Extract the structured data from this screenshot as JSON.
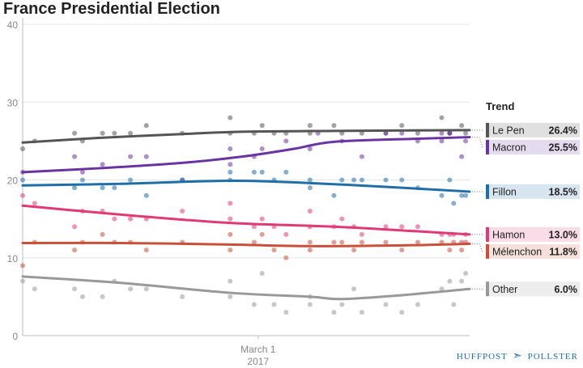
{
  "chart_data": {
    "type": "scatter",
    "title": "France Presidential Election",
    "legend_title": "Trend",
    "x_tick_labels": [
      {
        "date": "2017-03-01",
        "line1": "March 1",
        "line2": "2017"
      }
    ],
    "x_range": [
      "2017-01-01",
      "2017-04-23"
    ],
    "ylim": [
      0,
      40
    ],
    "y_ticks": [
      0,
      10,
      20,
      30,
      40
    ],
    "grid": "horizontal",
    "legend_position": "right",
    "series": [
      {
        "name": "Le Pen",
        "label": "26.4%",
        "color": "#555555",
        "trend": [
          [
            "2017-01-01",
            24.8
          ],
          [
            "2017-01-20",
            25.4
          ],
          [
            "2017-02-10",
            25.9
          ],
          [
            "2017-02-25",
            26.2
          ],
          [
            "2017-03-20",
            26.3
          ],
          [
            "2017-04-23",
            26.4
          ]
        ],
        "polls": [
          [
            "2017-01-01",
            24
          ],
          [
            "2017-01-04",
            25
          ],
          [
            "2017-01-14",
            26
          ],
          [
            "2017-01-16",
            25
          ],
          [
            "2017-01-21",
            26
          ],
          [
            "2017-01-24",
            26
          ],
          [
            "2017-01-28",
            26
          ],
          [
            "2017-02-01",
            27
          ],
          [
            "2017-02-10",
            26
          ],
          [
            "2017-02-22",
            28
          ],
          [
            "2017-02-22",
            26
          ],
          [
            "2017-02-28",
            26
          ],
          [
            "2017-03-02",
            27
          ],
          [
            "2017-03-05",
            26
          ],
          [
            "2017-03-08",
            26
          ],
          [
            "2017-03-14",
            27
          ],
          [
            "2017-03-14",
            26
          ],
          [
            "2017-03-20",
            27
          ],
          [
            "2017-03-22",
            26
          ],
          [
            "2017-03-27",
            26
          ],
          [
            "2017-04-02",
            26
          ],
          [
            "2017-04-06",
            27
          ],
          [
            "2017-04-10",
            26
          ],
          [
            "2017-04-16",
            28
          ],
          [
            "2017-04-18",
            26
          ],
          [
            "2017-04-18",
            26
          ],
          [
            "2017-04-21",
            27
          ],
          [
            "2017-04-22",
            26
          ]
        ]
      },
      {
        "name": "Macron",
        "label": "25.5%",
        "color": "#6a35a0",
        "trend": [
          [
            "2017-01-01",
            21.0
          ],
          [
            "2017-01-20",
            21.5
          ],
          [
            "2017-02-10",
            22.2
          ],
          [
            "2017-02-25",
            23.0
          ],
          [
            "2017-03-10",
            24.0
          ],
          [
            "2017-03-20",
            24.9
          ],
          [
            "2017-04-10",
            25.3
          ],
          [
            "2017-04-23",
            25.5
          ]
        ],
        "polls": [
          [
            "2017-01-01",
            21
          ],
          [
            "2017-01-14",
            23
          ],
          [
            "2017-01-16",
            21
          ],
          [
            "2017-01-21",
            22
          ],
          [
            "2017-01-28",
            23
          ],
          [
            "2017-02-01",
            23
          ],
          [
            "2017-02-10",
            20
          ],
          [
            "2017-02-22",
            24
          ],
          [
            "2017-02-22",
            22
          ],
          [
            "2017-02-28",
            23
          ],
          [
            "2017-03-02",
            24
          ],
          [
            "2017-03-08",
            25
          ],
          [
            "2017-03-14",
            24
          ],
          [
            "2017-03-16",
            26
          ],
          [
            "2017-03-22",
            25
          ],
          [
            "2017-03-27",
            23
          ],
          [
            "2017-04-02",
            26
          ],
          [
            "2017-04-06",
            26
          ],
          [
            "2017-04-10",
            25
          ],
          [
            "2017-04-16",
            25
          ],
          [
            "2017-04-16",
            26
          ],
          [
            "2017-04-18",
            26
          ],
          [
            "2017-04-22",
            25
          ],
          [
            "2017-04-21",
            23
          ]
        ]
      },
      {
        "name": "Fillon",
        "label": "18.5%",
        "color": "#1f6ea8",
        "trend": [
          [
            "2017-01-01",
            19.3
          ],
          [
            "2017-01-25",
            19.5
          ],
          [
            "2017-02-22",
            19.9
          ],
          [
            "2017-03-14",
            19.6
          ],
          [
            "2017-04-06",
            19.0
          ],
          [
            "2017-04-23",
            18.5
          ]
        ],
        "polls": [
          [
            "2017-01-01",
            20
          ],
          [
            "2017-01-14",
            19
          ],
          [
            "2017-01-16",
            20
          ],
          [
            "2017-01-21",
            19
          ],
          [
            "2017-01-24",
            19
          ],
          [
            "2017-01-28",
            20
          ],
          [
            "2017-02-01",
            18
          ],
          [
            "2017-02-10",
            20
          ],
          [
            "2017-02-22",
            21
          ],
          [
            "2017-02-22",
            20
          ],
          [
            "2017-02-28",
            21
          ],
          [
            "2017-03-02",
            21
          ],
          [
            "2017-03-05",
            20
          ],
          [
            "2017-03-08",
            21
          ],
          [
            "2017-03-14",
            19
          ],
          [
            "2017-03-14",
            20
          ],
          [
            "2017-03-20",
            18
          ],
          [
            "2017-03-22",
            20
          ],
          [
            "2017-03-25",
            20
          ],
          [
            "2017-03-27",
            20
          ],
          [
            "2017-04-02",
            20
          ],
          [
            "2017-04-06",
            20
          ],
          [
            "2017-04-10",
            19
          ],
          [
            "2017-04-16",
            18
          ],
          [
            "2017-04-18",
            20
          ],
          [
            "2017-04-19",
            17
          ],
          [
            "2017-04-21",
            18
          ],
          [
            "2017-04-22",
            18
          ]
        ]
      },
      {
        "name": "Hamon",
        "label": "13.0%",
        "color": "#e03a76",
        "trend": [
          [
            "2017-01-01",
            16.7
          ],
          [
            "2017-01-20",
            15.8
          ],
          [
            "2017-02-10",
            14.9
          ],
          [
            "2017-02-25",
            14.4
          ],
          [
            "2017-03-20",
            14.0
          ],
          [
            "2017-04-10",
            13.4
          ],
          [
            "2017-04-23",
            13.0
          ]
        ],
        "polls": [
          [
            "2017-01-01",
            18
          ],
          [
            "2017-01-04",
            17
          ],
          [
            "2017-01-14",
            14
          ],
          [
            "2017-01-16",
            16
          ],
          [
            "2017-01-21",
            16
          ],
          [
            "2017-01-24",
            15
          ],
          [
            "2017-01-28",
            15
          ],
          [
            "2017-02-01",
            15
          ],
          [
            "2017-02-10",
            16
          ],
          [
            "2017-02-22",
            17
          ],
          [
            "2017-02-22",
            15
          ],
          [
            "2017-02-28",
            14
          ],
          [
            "2017-03-02",
            15
          ],
          [
            "2017-03-05",
            14
          ],
          [
            "2017-03-08",
            13
          ],
          [
            "2017-03-14",
            16
          ],
          [
            "2017-03-14",
            14
          ],
          [
            "2017-03-20",
            14
          ],
          [
            "2017-03-22",
            15
          ],
          [
            "2017-03-25",
            14
          ],
          [
            "2017-03-27",
            13
          ],
          [
            "2017-04-02",
            14
          ],
          [
            "2017-04-06",
            14
          ],
          [
            "2017-04-10",
            14
          ],
          [
            "2017-04-16",
            13
          ],
          [
            "2017-04-18",
            13
          ],
          [
            "2017-04-19",
            13
          ],
          [
            "2017-04-21",
            12
          ],
          [
            "2017-04-22",
            13
          ]
        ]
      },
      {
        "name": "Mélenchon",
        "label": "11.8%",
        "color": "#c9503a",
        "trend": [
          [
            "2017-01-01",
            11.9
          ],
          [
            "2017-01-25",
            11.9
          ],
          [
            "2017-02-22",
            11.7
          ],
          [
            "2017-03-14",
            11.5
          ],
          [
            "2017-04-06",
            11.6
          ],
          [
            "2017-04-23",
            11.8
          ]
        ],
        "polls": [
          [
            "2017-01-01",
            9
          ],
          [
            "2017-01-04",
            12
          ],
          [
            "2017-01-14",
            11
          ],
          [
            "2017-01-16",
            12
          ],
          [
            "2017-01-21",
            13
          ],
          [
            "2017-01-24",
            12
          ],
          [
            "2017-01-28",
            12
          ],
          [
            "2017-02-01",
            11
          ],
          [
            "2017-02-10",
            12
          ],
          [
            "2017-02-22",
            13
          ],
          [
            "2017-02-22",
            11
          ],
          [
            "2017-02-28",
            12
          ],
          [
            "2017-03-02",
            13
          ],
          [
            "2017-03-05",
            11
          ],
          [
            "2017-03-08",
            10
          ],
          [
            "2017-03-14",
            12
          ],
          [
            "2017-03-14",
            11
          ],
          [
            "2017-03-20",
            12
          ],
          [
            "2017-03-22",
            12
          ],
          [
            "2017-03-25",
            11
          ],
          [
            "2017-03-27",
            12
          ],
          [
            "2017-04-02",
            12
          ],
          [
            "2017-04-06",
            11
          ],
          [
            "2017-04-10",
            12
          ],
          [
            "2017-04-16",
            12
          ],
          [
            "2017-04-18",
            11
          ],
          [
            "2017-04-19",
            12
          ],
          [
            "2017-04-21",
            11
          ],
          [
            "2017-04-22",
            12
          ]
        ]
      },
      {
        "name": "Other",
        "label": "6.0%",
        "color": "#999999",
        "trend": [
          [
            "2017-01-01",
            7.6
          ],
          [
            "2017-01-25",
            6.8
          ],
          [
            "2017-02-22",
            5.5
          ],
          [
            "2017-03-14",
            5.0
          ],
          [
            "2017-03-22",
            4.7
          ],
          [
            "2017-04-06",
            5.2
          ],
          [
            "2017-04-23",
            6.0
          ]
        ],
        "polls": [
          [
            "2017-01-01",
            7
          ],
          [
            "2017-01-04",
            6
          ],
          [
            "2017-01-14",
            6
          ],
          [
            "2017-01-16",
            5
          ],
          [
            "2017-01-21",
            5
          ],
          [
            "2017-01-24",
            7
          ],
          [
            "2017-01-28",
            6
          ],
          [
            "2017-02-01",
            6
          ],
          [
            "2017-02-10",
            5
          ],
          [
            "2017-02-22",
            7
          ],
          [
            "2017-02-22",
            5
          ],
          [
            "2017-02-28",
            4
          ],
          [
            "2017-03-02",
            8
          ],
          [
            "2017-03-05",
            4
          ],
          [
            "2017-03-08",
            3
          ],
          [
            "2017-03-14",
            5
          ],
          [
            "2017-03-14",
            4
          ],
          [
            "2017-03-20",
            3
          ],
          [
            "2017-03-22",
            4
          ],
          [
            "2017-03-25",
            6
          ],
          [
            "2017-03-27",
            3
          ],
          [
            "2017-04-02",
            4
          ],
          [
            "2017-04-06",
            3
          ],
          [
            "2017-04-10",
            4
          ],
          [
            "2017-04-16",
            6
          ],
          [
            "2017-04-18",
            7
          ],
          [
            "2017-04-19",
            4
          ],
          [
            "2017-04-21",
            7
          ],
          [
            "2017-04-22",
            8
          ]
        ]
      }
    ]
  },
  "logo": {
    "left": "HUFFPOST",
    "right": "POLLSTER"
  }
}
